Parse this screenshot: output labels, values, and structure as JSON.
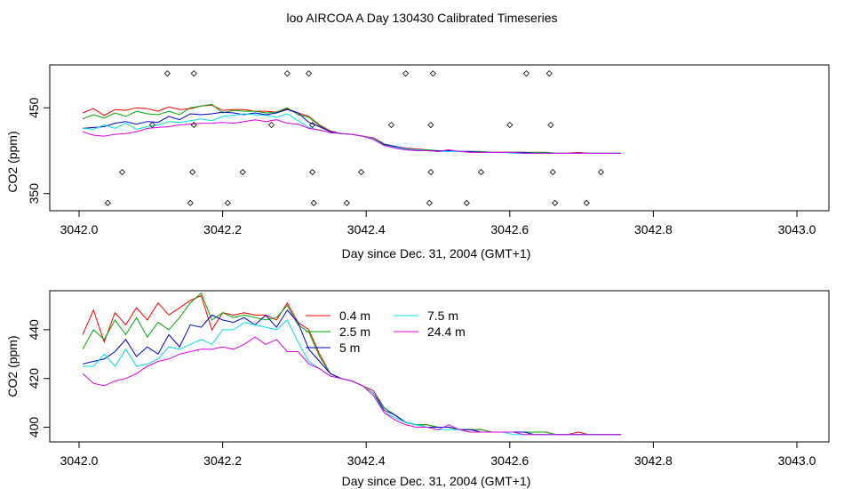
{
  "title": "loo AIRCOA A  Day 130430  Calibrated Timeseries",
  "chart_data": [
    {
      "type": "line",
      "xlabel": "Day since Dec. 31, 2004 (GMT+1)",
      "ylabel": "CO2 (ppm)",
      "xlim": [
        3042.0,
        3043.0
      ],
      "ylim": [
        330,
        500
      ],
      "xticks": [
        3042.0,
        3042.2,
        3042.4,
        3042.6,
        3042.8,
        3043.0
      ],
      "xtick_labels": [
        "3042.0",
        "3042.2",
        "3042.4",
        "3042.6",
        "3042.8",
        "3043.0"
      ],
      "yticks": [
        350,
        450
      ],
      "ytick_labels": [
        "350",
        "450"
      ],
      "grid": false,
      "legend": "none",
      "series_colors": [
        "#ff0000",
        "#00aa00",
        "#0000cc",
        "#00e0e0",
        "#e000e0"
      ],
      "x": [
        3042.005,
        3042.02,
        3042.035,
        3042.05,
        3042.065,
        3042.08,
        3042.095,
        3042.11,
        3042.125,
        3042.14,
        3042.155,
        3042.17,
        3042.185,
        3042.2,
        3042.215,
        3042.23,
        3042.245,
        3042.26,
        3042.275,
        3042.29,
        3042.305,
        3042.32,
        3042.335,
        3042.35,
        3042.365,
        3042.38,
        3042.395,
        3042.41,
        3042.425,
        3042.44,
        3042.455,
        3042.47,
        3042.485,
        3042.5,
        3042.515,
        3042.53,
        3042.545,
        3042.56,
        3042.575,
        3042.59,
        3042.605,
        3042.62,
        3042.635,
        3042.65,
        3042.665,
        3042.68,
        3042.695,
        3042.71,
        3042.725,
        3042.74,
        3042.755
      ],
      "series": [
        {
          "values": [
            444,
            449,
            441,
            448,
            447,
            450,
            449,
            446,
            451,
            448,
            449,
            452,
            453,
            447,
            448,
            448,
            446,
            446,
            445,
            449,
            444,
            440,
            430,
            423,
            420,
            419,
            417,
            415,
            408,
            405,
            403,
            402,
            401,
            400,
            400,
            399,
            399,
            399,
            398,
            398,
            398,
            398,
            398,
            398,
            397,
            397,
            398,
            397,
            397,
            397,
            397
          ]
        },
        {
          "values": [
            437,
            442,
            438,
            444,
            440,
            446,
            443,
            442,
            446,
            442,
            450,
            452,
            454,
            444,
            447,
            446,
            446,
            444,
            445,
            450,
            442,
            439,
            429,
            422,
            420,
            419,
            417,
            414,
            408,
            405,
            402,
            401,
            401,
            400,
            400,
            399,
            399,
            399,
            398,
            398,
            398,
            398,
            398,
            398,
            397,
            397,
            397,
            397,
            397,
            397,
            397
          ]
        },
        {
          "values": [
            426,
            427,
            428,
            432,
            434,
            431,
            434,
            433,
            440,
            436,
            443,
            442,
            443,
            445,
            444,
            442,
            444,
            442,
            444,
            448,
            444,
            433,
            428,
            422,
            420,
            419,
            417,
            414,
            407,
            405,
            402,
            401,
            400,
            400,
            400,
            399,
            399,
            398,
            398,
            398,
            398,
            398,
            397,
            397,
            397,
            397,
            397,
            397,
            397,
            397,
            397
          ]
        },
        {
          "values": [
            426,
            425,
            430,
            426,
            432,
            425,
            428,
            430,
            434,
            433,
            435,
            437,
            435,
            440,
            441,
            443,
            442,
            441,
            439,
            443,
            435,
            427,
            424,
            421,
            420,
            419,
            417,
            414,
            406,
            404,
            402,
            401,
            400,
            399,
            399,
            399,
            398,
            398,
            398,
            398,
            397,
            397,
            397,
            397,
            397,
            397,
            397,
            397,
            397,
            397,
            397
          ]
        },
        {
          "values": [
            422,
            418,
            417,
            419,
            420,
            422,
            426,
            427,
            428,
            430,
            431,
            432,
            432,
            433,
            432,
            434,
            436,
            434,
            436,
            432,
            431,
            426,
            424,
            421,
            420,
            419,
            417,
            413,
            406,
            403,
            401,
            400,
            400,
            399,
            401,
            399,
            398,
            398,
            398,
            398,
            398,
            397,
            397,
            397,
            397,
            397,
            397,
            397,
            397,
            397,
            397
          ]
        }
      ],
      "markers": [
        {
          "x": 3042.123,
          "y": 490
        },
        {
          "x": 3042.16,
          "y": 490
        },
        {
          "x": 3042.29,
          "y": 490
        },
        {
          "x": 3042.32,
          "y": 490
        },
        {
          "x": 3042.455,
          "y": 490
        },
        {
          "x": 3042.493,
          "y": 490
        },
        {
          "x": 3042.623,
          "y": 490
        },
        {
          "x": 3042.655,
          "y": 490
        },
        {
          "x": 3042.102,
          "y": 430
        },
        {
          "x": 3042.16,
          "y": 430
        },
        {
          "x": 3042.268,
          "y": 430
        },
        {
          "x": 3042.325,
          "y": 430
        },
        {
          "x": 3042.435,
          "y": 430
        },
        {
          "x": 3042.49,
          "y": 430
        },
        {
          "x": 3042.6,
          "y": 430
        },
        {
          "x": 3042.657,
          "y": 430
        },
        {
          "x": 3042.06,
          "y": 375
        },
        {
          "x": 3042.158,
          "y": 375
        },
        {
          "x": 3042.228,
          "y": 375
        },
        {
          "x": 3042.325,
          "y": 375
        },
        {
          "x": 3042.393,
          "y": 375
        },
        {
          "x": 3042.49,
          "y": 375
        },
        {
          "x": 3042.56,
          "y": 375
        },
        {
          "x": 3042.66,
          "y": 375
        },
        {
          "x": 3042.727,
          "y": 375
        },
        {
          "x": 3042.04,
          "y": 339
        },
        {
          "x": 3042.155,
          "y": 339
        },
        {
          "x": 3042.207,
          "y": 339
        },
        {
          "x": 3042.327,
          "y": 339
        },
        {
          "x": 3042.373,
          "y": 339
        },
        {
          "x": 3042.488,
          "y": 339
        },
        {
          "x": 3042.54,
          "y": 339
        },
        {
          "x": 3042.663,
          "y": 339
        },
        {
          "x": 3042.707,
          "y": 339
        }
      ]
    },
    {
      "type": "line",
      "xlabel": "Day since Dec. 31, 2004 (GMT+1)",
      "ylabel": "CO2 (ppm)",
      "xlim": [
        3042.0,
        3043.0
      ],
      "ylim": [
        394,
        456
      ],
      "xticks": [
        3042.0,
        3042.2,
        3042.4,
        3042.6,
        3042.8,
        3043.0
      ],
      "xtick_labels": [
        "3042.0",
        "3042.2",
        "3042.4",
        "3042.6",
        "3042.8",
        "3043.0"
      ],
      "yticks": [
        400,
        420,
        440
      ],
      "ytick_labels": [
        "400",
        "420",
        "440"
      ],
      "grid": false,
      "legend": "top-center",
      "x": [
        3042.005,
        3042.02,
        3042.035,
        3042.05,
        3042.065,
        3042.08,
        3042.095,
        3042.11,
        3042.125,
        3042.14,
        3042.155,
        3042.17,
        3042.185,
        3042.2,
        3042.215,
        3042.23,
        3042.245,
        3042.26,
        3042.275,
        3042.29,
        3042.305,
        3042.32,
        3042.335,
        3042.35,
        3042.365,
        3042.38,
        3042.395,
        3042.41,
        3042.425,
        3042.44,
        3042.455,
        3042.47,
        3042.485,
        3042.5,
        3042.515,
        3042.53,
        3042.545,
        3042.56,
        3042.575,
        3042.59,
        3042.605,
        3042.62,
        3042.635,
        3042.65,
        3042.665,
        3042.68,
        3042.695,
        3042.71,
        3042.725,
        3042.74,
        3042.755
      ],
      "series": [
        {
          "name": "0.4 m",
          "color": "#ff0000",
          "values": [
            438,
            448,
            435,
            447,
            442,
            449,
            444,
            451,
            446,
            449,
            452,
            454,
            440,
            447,
            446,
            447,
            446,
            446,
            444,
            451,
            443,
            440,
            430,
            422,
            420,
            419,
            417,
            415,
            408,
            405,
            402,
            401,
            401,
            400,
            400,
            399,
            399,
            399,
            398,
            398,
            398,
            398,
            398,
            398,
            397,
            397,
            398,
            397,
            397,
            397,
            397
          ]
        },
        {
          "name": "2.5 m",
          "color": "#00aa00",
          "values": [
            432,
            440,
            436,
            444,
            438,
            445,
            437,
            443,
            440,
            445,
            451,
            455,
            444,
            447,
            445,
            446,
            445,
            444,
            445,
            450,
            442,
            439,
            429,
            422,
            420,
            419,
            417,
            414,
            408,
            405,
            402,
            401,
            401,
            400,
            400,
            399,
            399,
            399,
            398,
            398,
            398,
            398,
            398,
            398,
            397,
            397,
            397,
            397,
            397,
            397,
            397
          ]
        },
        {
          "name": "5 m",
          "color": "#0000cc",
          "values": [
            426,
            427,
            428,
            431,
            436,
            429,
            433,
            430,
            438,
            433,
            442,
            441,
            446,
            444,
            443,
            445,
            442,
            446,
            441,
            448,
            443,
            432,
            427,
            422,
            420,
            419,
            417,
            414,
            407,
            405,
            402,
            401,
            400,
            400,
            400,
            399,
            399,
            398,
            398,
            398,
            398,
            398,
            397,
            397,
            397,
            397,
            397,
            397,
            397,
            397,
            397
          ]
        },
        {
          "name": "7.5 m",
          "color": "#00e0e0",
          "values": [
            425,
            425,
            430,
            425,
            432,
            425,
            426,
            428,
            433,
            432,
            434,
            436,
            434,
            440,
            440,
            443,
            442,
            441,
            440,
            444,
            435,
            427,
            424,
            421,
            420,
            419,
            417,
            414,
            406,
            404,
            402,
            401,
            400,
            399,
            399,
            399,
            398,
            398,
            398,
            398,
            397,
            397,
            397,
            397,
            397,
            397,
            397,
            397,
            397,
            397,
            397
          ]
        },
        {
          "name": "24.4 m",
          "color": "#e000e0",
          "values": [
            422,
            418,
            417,
            419,
            420,
            422,
            425,
            427,
            428,
            430,
            431,
            432,
            432,
            433,
            432,
            434,
            437,
            434,
            436,
            431,
            431,
            426,
            424,
            421,
            420,
            419,
            417,
            413,
            406,
            403,
            401,
            400,
            400,
            399,
            401,
            399,
            398,
            398,
            398,
            398,
            398,
            397,
            397,
            397,
            397,
            397,
            397,
            397,
            397,
            397,
            397
          ]
        }
      ]
    }
  ]
}
